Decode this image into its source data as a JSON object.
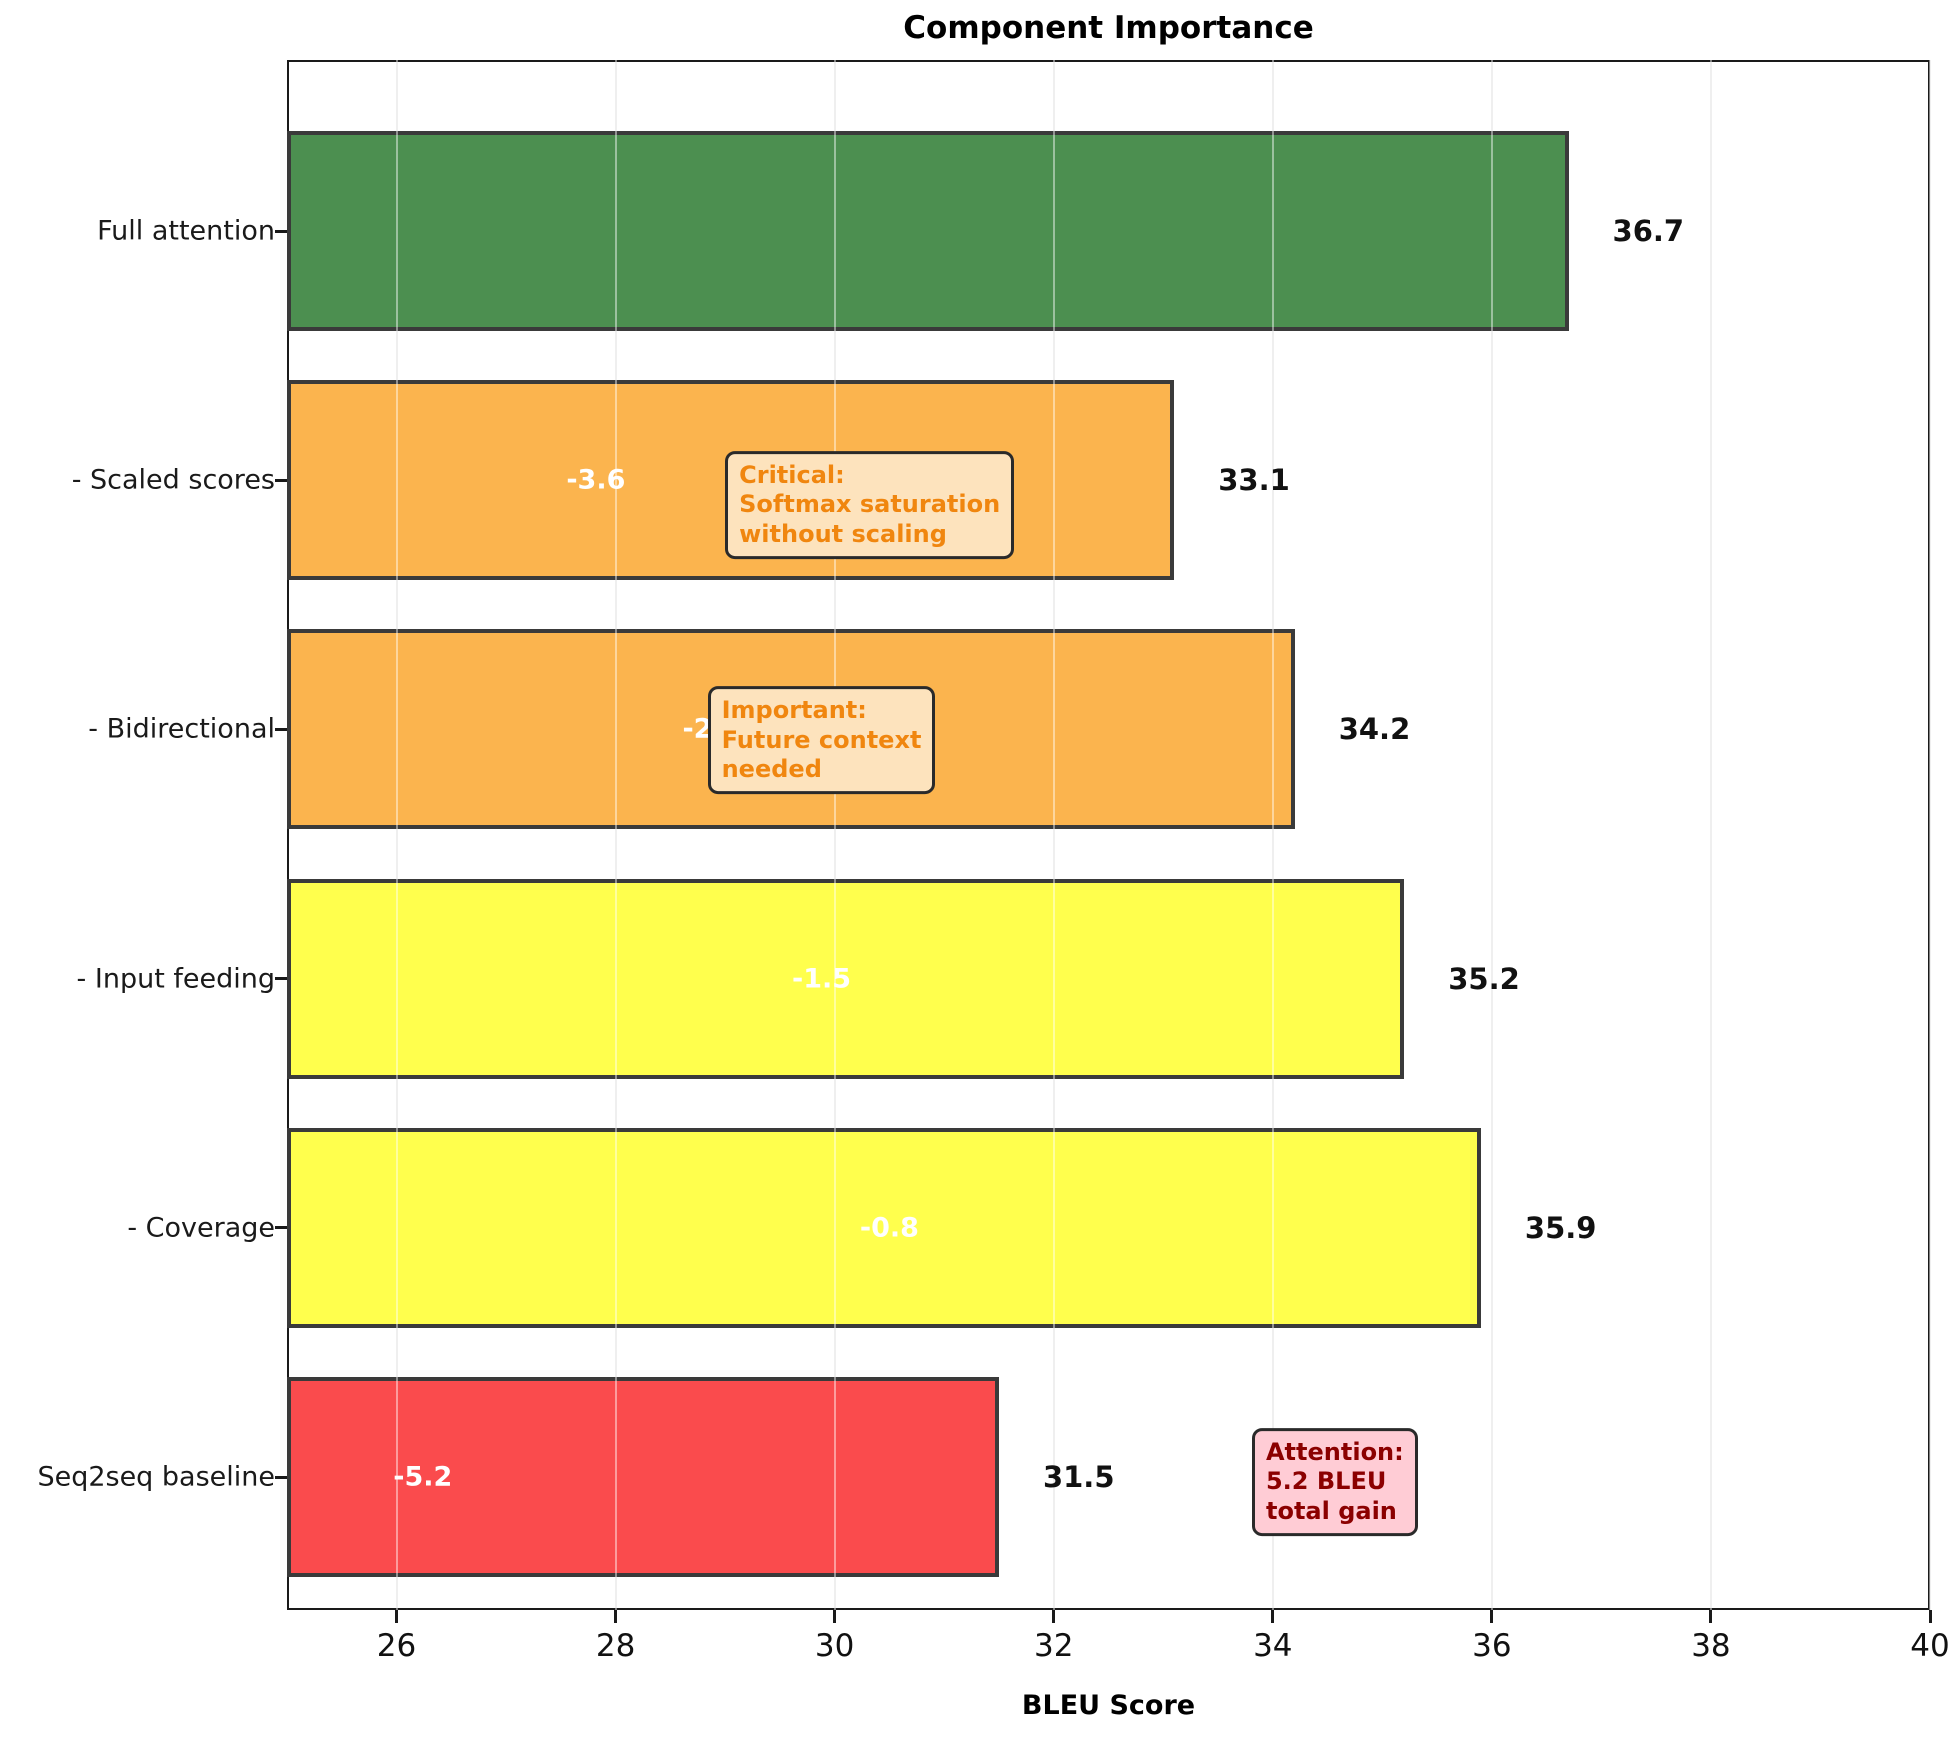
{
  "title": "Component Importance",
  "xlabel": "BLEU Score",
  "chart_data": {
    "type": "bar",
    "orientation": "horizontal",
    "title": "Component Importance",
    "xlabel": "BLEU Score",
    "xlim": [
      25,
      40
    ],
    "xticks": [
      26,
      28,
      30,
      32,
      34,
      36,
      38,
      40
    ],
    "grid": true,
    "categories": [
      "Full attention",
      "- Scaled scores",
      "- Bidirectional",
      "- Input feeding",
      "- Coverage",
      "Seq2seq baseline"
    ],
    "values": [
      36.7,
      33.1,
      34.2,
      35.2,
      35.9,
      31.5
    ],
    "value_labels": [
      "36.7",
      "33.1",
      "34.2",
      "35.2",
      "35.9",
      "31.5"
    ],
    "delta_labels": [
      null,
      "-3.6",
      "-2.5",
      "-1.5",
      "-0.8",
      "-5.2"
    ],
    "delta_label_x": [
      null,
      27.82,
      28.88,
      29.88,
      30.5,
      26.24
    ],
    "bar_colors": [
      "#4c8f50",
      "#fbb44e",
      "#fbb44e",
      "#ffff4d",
      "#ffff4d",
      "#fa4b4d"
    ],
    "bar_edge_color": "#3a3a3a",
    "annotations": [
      {
        "id": "critical-note",
        "text": "Critical:\nSoftmax saturation\nwithout scaling",
        "text_color": "#f0860f",
        "bg_color": "#fde3bd",
        "border_color": "#2a2a2a",
        "row": 1,
        "anchor_x": 29.0,
        "dy": 25
      },
      {
        "id": "important-note",
        "text": "Important:\nFuture context\nneeded",
        "text_color": "#f0860f",
        "bg_color": "#fde3bd",
        "border_color": "#2a2a2a",
        "row": 2,
        "anchor_x": 28.84,
        "dy": 11
      },
      {
        "id": "attention-gain-note",
        "text": "Attention:\n5.2 BLEU\ntotal gain",
        "text_color": "#8b0000",
        "bg_color": "#ffccd5",
        "border_color": "#2a2a2a",
        "row": 5,
        "anchor_x": 33.81,
        "dy": 5
      }
    ]
  }
}
